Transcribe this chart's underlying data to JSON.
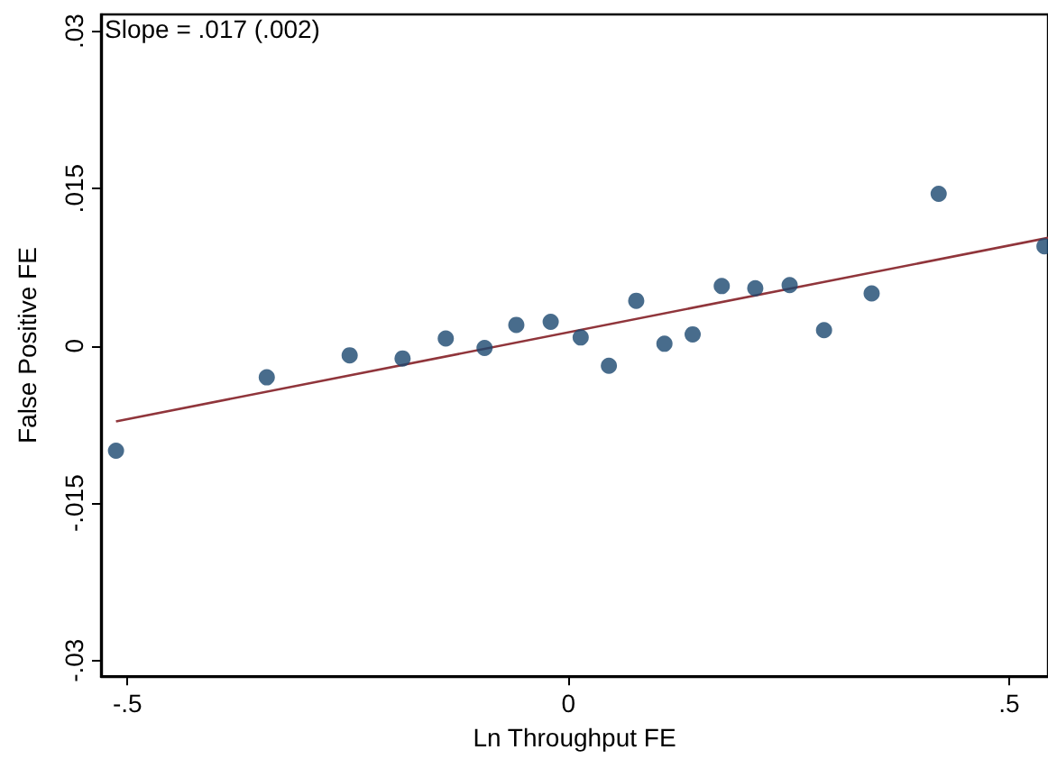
{
  "chart_data": {
    "type": "scatter",
    "xlabel": "Ln Throughput FE",
    "ylabel": "False Positive FE",
    "annotations": [
      "Slope = .017 (.002)"
    ],
    "xlim": [
      -0.53,
      0.544
    ],
    "ylim": [
      -0.0315,
      0.0316
    ],
    "xticks": [
      {
        "value": -0.5,
        "label": "-.5"
      },
      0,
      {
        "value": 0.5,
        "label": ".5"
      }
    ],
    "yticks": [
      {
        "value": -0.03,
        "label": "-.03"
      },
      {
        "value": -0.015,
        "label": "-.015"
      },
      0,
      {
        "value": 0.015,
        "label": ".015"
      },
      {
        "value": 0.03,
        "label": ".03"
      }
    ],
    "grid": false,
    "marker": "circle",
    "series": [
      {
        "color": "#1a476f",
        "x": [
          -0.513,
          -0.342,
          -0.248,
          -0.188,
          -0.139,
          -0.095,
          -0.059,
          -0.02,
          0.014,
          0.046,
          0.077,
          0.109,
          0.141,
          0.174,
          0.212,
          0.251,
          0.29,
          0.344,
          0.42,
          0.54
        ],
        "values": [
          -0.01,
          -0.003,
          -0.0009,
          -0.0012,
          0.0007,
          -0.0002,
          0.002,
          0.0023,
          0.0008,
          -0.0019,
          0.0043,
          0.0002,
          0.0011,
          0.0057,
          0.0055,
          0.0058,
          0.0015,
          0.005,
          0.0145,
          0.0095
        ]
      },
      {
        "type": "line",
        "color": "#90353b",
        "marker": "none",
        "line_style": "solid",
        "x": [
          -0.513,
          0.544
        ],
        "values": [
          -0.0072,
          0.0103
        ]
      }
    ]
  }
}
